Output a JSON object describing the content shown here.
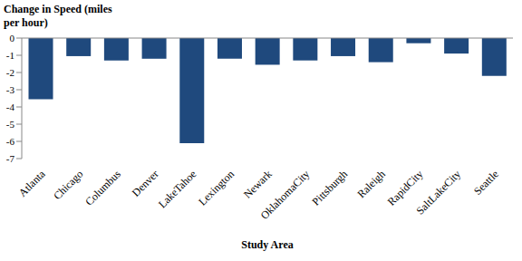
{
  "chart_data": {
    "type": "bar",
    "y_label": "Change in Speed (miles per hour)",
    "x_label": "Study Area",
    "categories": [
      "Atlanta",
      "Chicago",
      "Columbus",
      "Denver",
      "LakeTahoe",
      "Lexington",
      "Newark",
      "OklahomaCity",
      "Pittsburgh",
      "Raleigh",
      "RapidCity",
      "SaltLakeCity",
      "Seattle"
    ],
    "values": [
      -3.55,
      -1.05,
      -1.3,
      -1.2,
      -6.1,
      -1.2,
      -1.55,
      -1.3,
      -1.05,
      -1.4,
      -0.3,
      -0.9,
      -2.2
    ],
    "color": "#1f497d",
    "ylim": [
      -7,
      0
    ],
    "yticks": [
      -7,
      -6,
      -5,
      -4,
      -3,
      -2,
      -1,
      0
    ],
    "grid": false
  }
}
